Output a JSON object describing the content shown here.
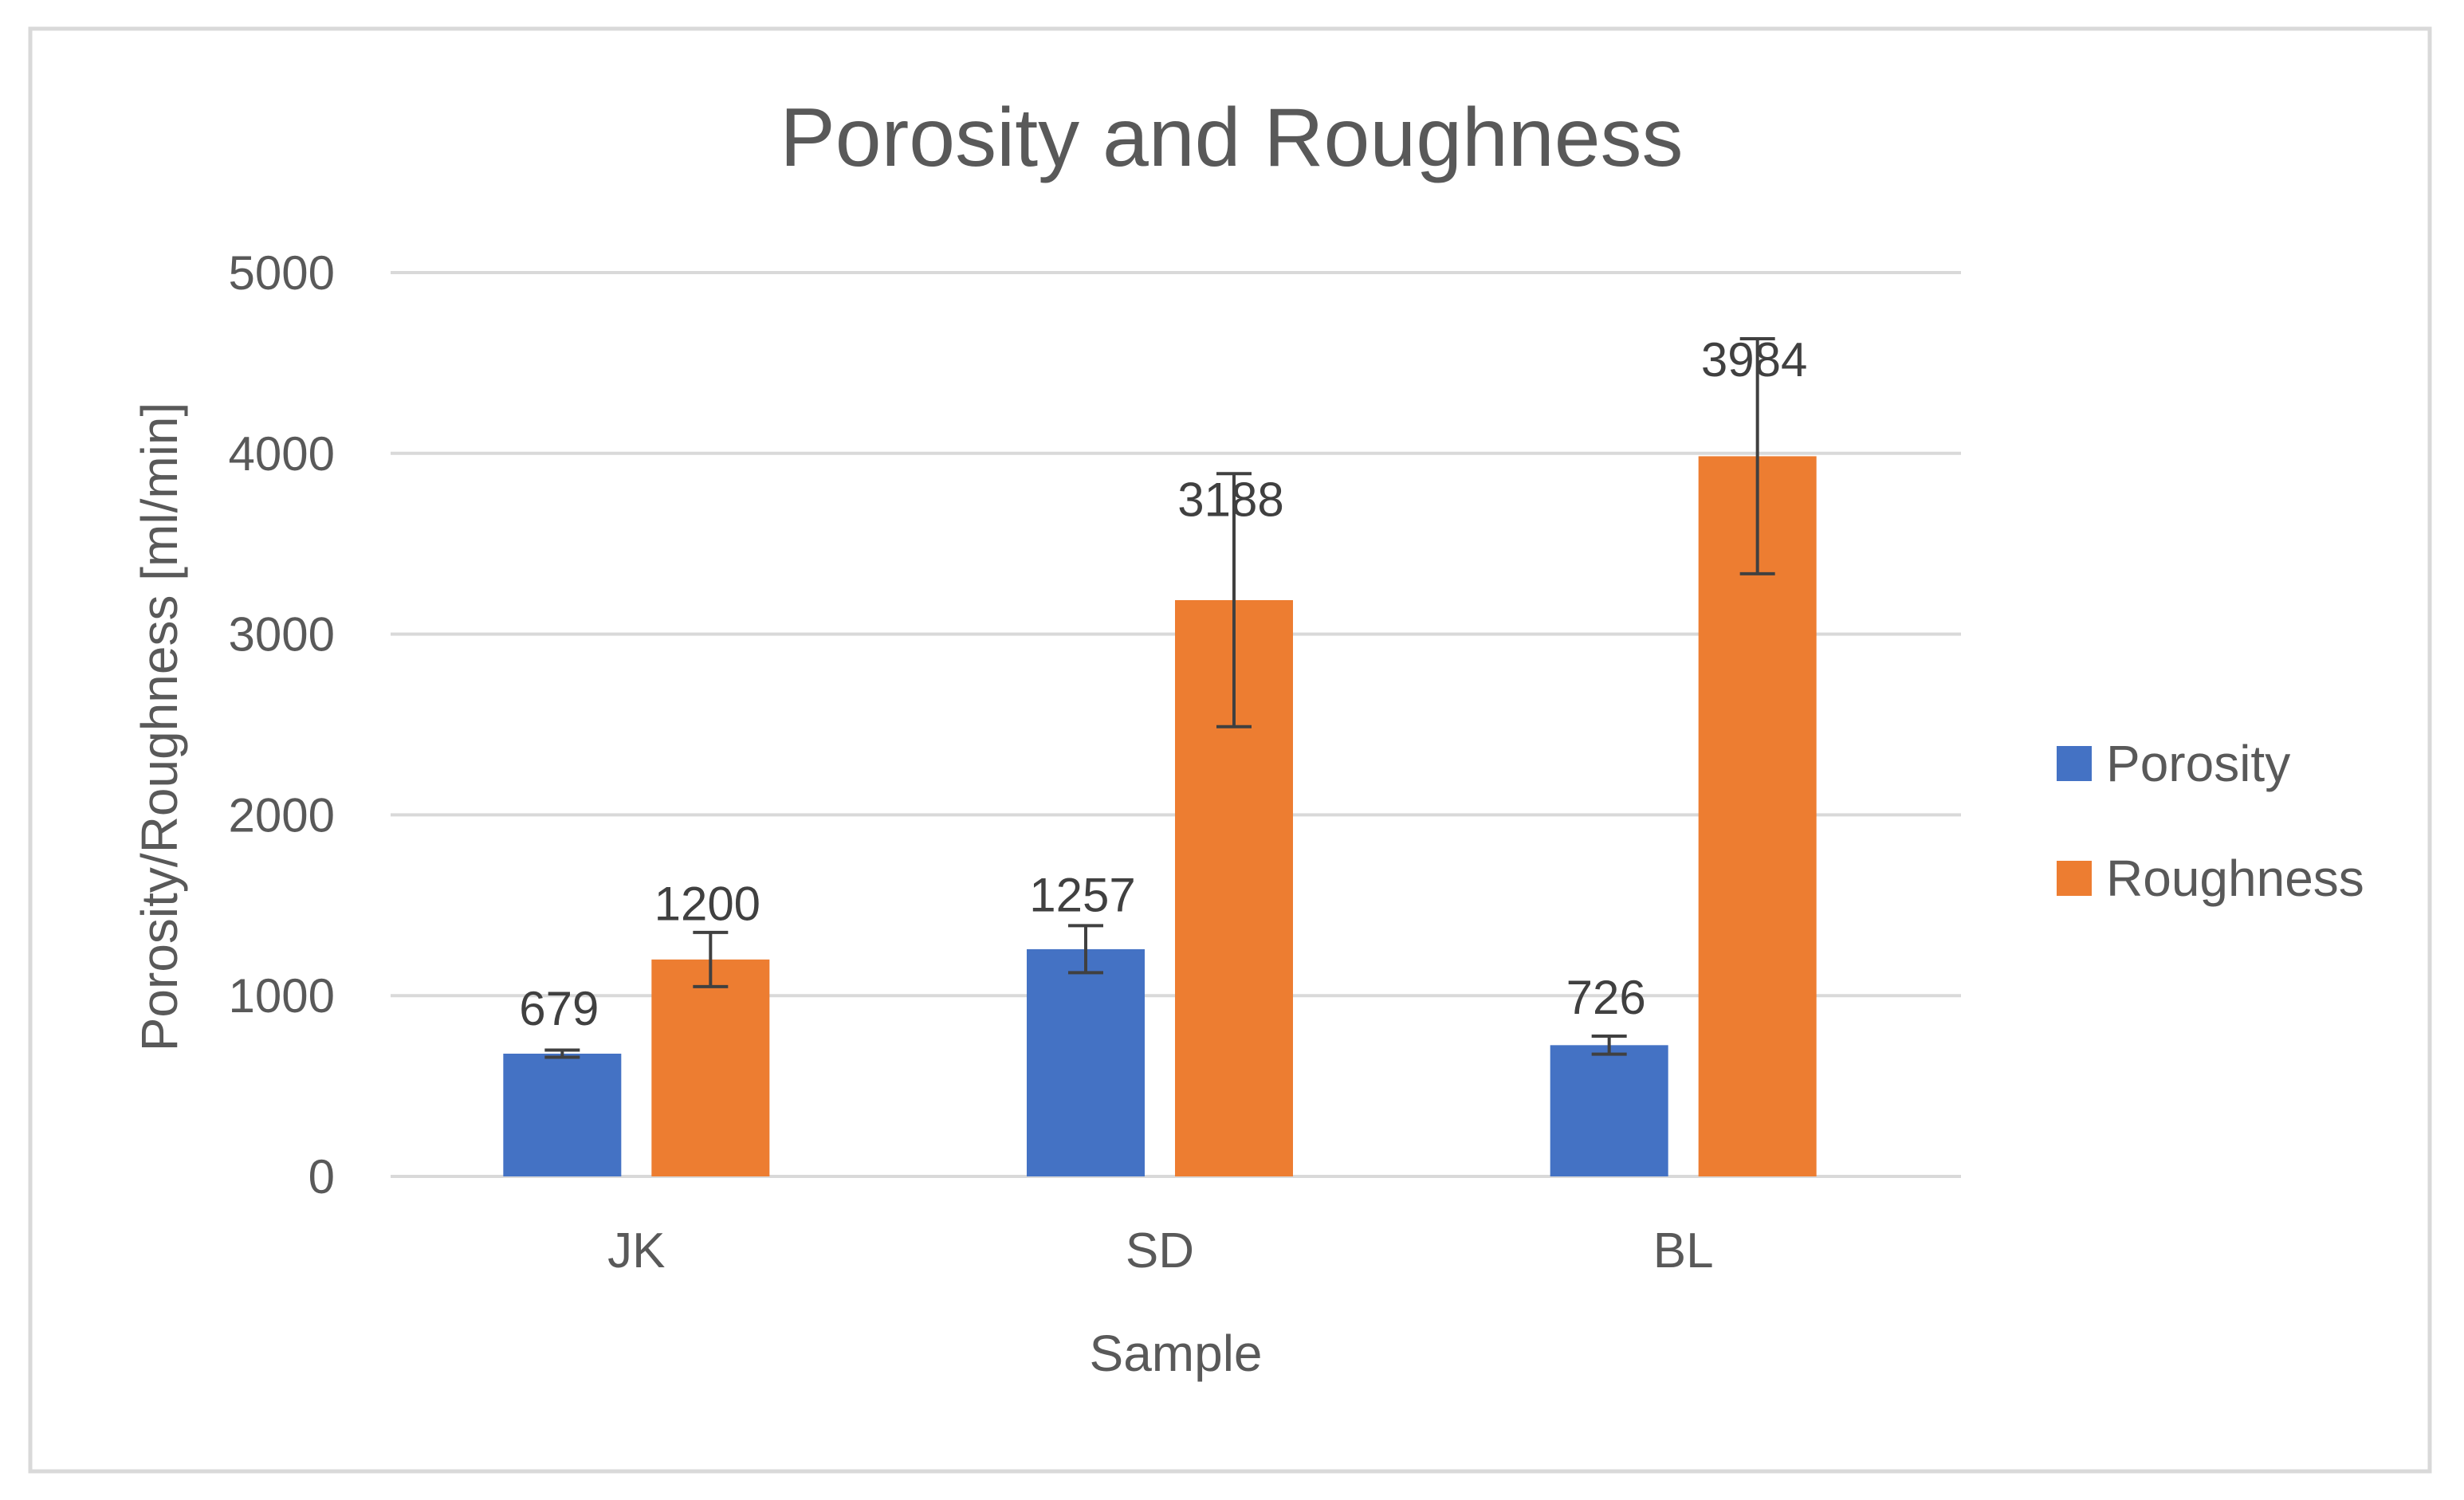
{
  "chart_data": {
    "type": "bar",
    "title": "Porosity and Roughness",
    "xlabel": "Sample",
    "ylabel": "Porosity/Roughness [ml/min]",
    "ylim": [
      0,
      5000
    ],
    "yticks": [
      0,
      1000,
      2000,
      3000,
      4000,
      5000
    ],
    "grid": true,
    "legend_position": "right",
    "categories": [
      "JK",
      "SD",
      "BL"
    ],
    "series": [
      {
        "name": "Porosity",
        "color": "#4472C4",
        "values": [
          679,
          1257,
          726
        ],
        "labels": [
          "679",
          "1257",
          "726"
        ],
        "error": [
          20,
          130,
          50
        ]
      },
      {
        "name": "Roughness",
        "color": "#ED7D31",
        "values": [
          1200,
          3188,
          3984
        ],
        "labels": [
          "1200",
          "3188",
          "3984"
        ],
        "error": [
          150,
          700,
          650
        ]
      }
    ]
  }
}
